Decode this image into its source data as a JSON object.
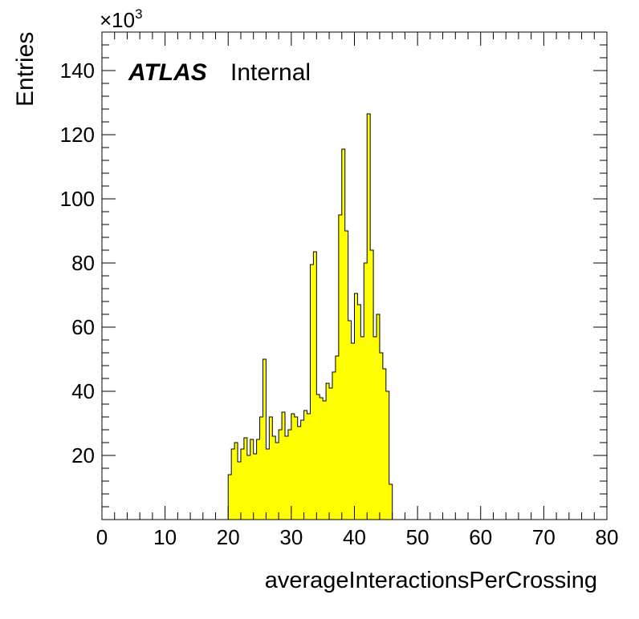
{
  "chart_data": {
    "type": "bar",
    "histogram": true,
    "xlabel": "averageInteractionsPerCrossing",
    "ylabel": "Entries",
    "y_multiplier_label": "×10",
    "y_multiplier_exponent": "3",
    "experiment_label": "ATLAS",
    "status_label": "Internal",
    "xlim": [
      0,
      80
    ],
    "ylim": [
      0,
      152
    ],
    "x_ticks": [
      0,
      10,
      20,
      30,
      40,
      50,
      60,
      70,
      80
    ],
    "y_ticks": [
      20,
      40,
      60,
      80,
      100,
      120,
      140
    ],
    "bin_width": 0.5,
    "bin_start": 20,
    "fill_color": "#ffff00",
    "line_color": "#000000",
    "values": [
      14,
      22,
      24,
      18,
      22,
      25.5,
      20,
      25,
      20.5,
      25,
      32,
      50,
      22,
      32,
      26,
      24,
      28,
      33.5,
      26,
      28,
      33,
      32,
      29,
      31,
      34,
      33,
      79.5,
      83.5,
      39,
      38,
      37,
      42.5,
      41,
      46,
      51,
      95,
      115.5,
      90,
      62,
      55,
      70.5,
      67,
      57,
      80,
      126.5,
      84,
      57,
      64,
      52,
      47,
      40,
      11
    ]
  }
}
